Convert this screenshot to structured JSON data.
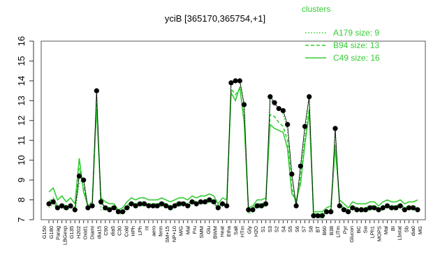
{
  "chart_data": {
    "type": "line",
    "title": "yciB [365170,365754,+1]",
    "xlabel": "",
    "ylabel": "",
    "ylim": [
      7,
      16
    ],
    "yticks": [
      7,
      8,
      9,
      10,
      11,
      12,
      13,
      14,
      15,
      16
    ],
    "grid": false,
    "legend": {
      "title": "clusters",
      "placement": "top-right",
      "entries": [
        {
          "label": "A179 size: 9",
          "style": "dotted"
        },
        {
          "label": "B94 size: 13",
          "style": "dashed"
        },
        {
          "label": "C49 size: 16",
          "style": "solid"
        }
      ]
    },
    "colors": {
      "clusters": "#33cc33",
      "mean": "#000000"
    },
    "categories": [
      "G150",
      "G135",
      "G180",
      "Parag",
      "H202",
      "LBGexp",
      "Oxid1",
      "dia15",
      "Diami",
      "C90",
      "dia5",
      "C30",
      "Cold",
      "LPh",
      "HPh",
      "aero",
      "nt",
      "ferm",
      "SM+15",
      "NP+10",
      "C20",
      "MG+15",
      "MG+30",
      "MG+45",
      "MG+60",
      "MG+90",
      "MG+120",
      "MG+150",
      "MG+180",
      "NO+10",
      "NO+15",
      "NO+30",
      "NO+45",
      "NO+60",
      "NO+90",
      "NO+120",
      "M/G",
      "MG+t",
      "MG+t5",
      "Mal",
      "Glu",
      "Fru",
      "SMM",
      "BWM",
      "Heat",
      "Etha",
      "Salt",
      "HTm",
      "Gly",
      "H2O",
      "S1",
      "S2",
      "S3",
      "S4",
      "S5",
      "S6",
      "S7",
      "S8",
      "BT",
      "B60",
      "B38",
      "LiTm",
      "Pyr",
      "Glucon",
      "Ace",
      "SMMP",
      "Mal+",
      "Lac",
      "LBGstat",
      "M63",
      "MOPS",
      "LB1",
      "LB2",
      "LPh2",
      "BC",
      "Sw",
      "BI",
      "M40st",
      "M40",
      "MOPS2",
      "Lbstat",
      "Sh",
      "Sb",
      "dia0",
      "Mg",
      "MOF"
    ],
    "tick_labels": [
      "G150",
      "G180",
      "Parag",
      "LBGexp",
      "G135",
      "H202",
      "Oxid1",
      "Diami",
      "dia15",
      "C90",
      "dia5",
      "C30",
      "Cold",
      "HPh",
      "LPh",
      "nt",
      "aero",
      "ferm",
      "SM+15",
      "NP+10",
      "M/G",
      "Mal",
      "Fru",
      "SMM",
      "Glu",
      "BWM",
      "Heat",
      "Etha",
      "Salt",
      "HTm",
      "Gly",
      "H2O",
      "S1",
      "S3",
      "S2",
      "S4",
      "S5",
      "S6",
      "S7",
      "S8",
      "BT",
      "B60",
      "B38",
      "LiTm",
      "Pyr",
      "Glucon",
      "BC",
      "Sw",
      "LPh1",
      "MOPS",
      "Mal",
      "BI",
      "Lbstat",
      "Sb",
      "dia0",
      "MG"
    ],
    "series": [
      {
        "values": [
          7.6,
          7.8,
          7.5,
          7.6,
          7.5,
          7.6,
          7.4,
          8.8,
          9.1,
          7.6,
          7.6,
          13.4,
          7.5,
          7.5,
          7.4,
          7.6,
          7.3,
          7.3,
          7.5,
          7.7,
          7.6,
          7.7,
          7.7,
          7.7,
          7.6,
          7.6,
          7.7,
          7.7,
          7.5,
          7.6,
          7.7,
          7.7,
          7.6,
          7.8,
          7.7,
          7.8,
          7.8,
          7.9,
          7.8,
          7.5,
          7.7,
          7.6,
          14.0,
          13.9,
          14.0,
          12.9,
          7.3,
          7.4,
          7.6,
          7.6,
          7.7,
          13.1,
          12.8,
          12.6,
          12.3,
          11.6,
          9.2,
          7.6,
          9.6,
          11.5,
          13.2,
          7.1,
          7.1,
          7.1,
          7.3,
          7.3,
          11.5,
          7.6,
          7.4,
          7.3,
          7.5,
          7.4,
          7.4,
          7.4,
          7.5,
          7.5,
          7.4,
          7.5,
          7.6,
          7.5,
          7.5,
          7.6,
          7.4,
          7.5,
          7.5,
          7.4
        ]
      },
      {
        "values": [
          7.9,
          8.1,
          7.7,
          7.8,
          7.7,
          7.8,
          7.6,
          9.6,
          8.6,
          7.6,
          7.8,
          12.9,
          7.8,
          7.7,
          7.6,
          7.7,
          7.4,
          7.5,
          7.7,
          7.9,
          7.8,
          7.9,
          7.9,
          7.8,
          7.8,
          7.8,
          7.9,
          7.8,
          7.7,
          7.8,
          7.9,
          7.9,
          7.8,
          8.0,
          7.9,
          8.0,
          8.0,
          8.1,
          8.0,
          7.7,
          7.9,
          7.8,
          13.6,
          13.3,
          13.6,
          12.2,
          7.5,
          7.6,
          7.8,
          7.8,
          7.9,
          12.3,
          12.2,
          11.9,
          11.7,
          11.0,
          8.6,
          7.8,
          9.1,
          11.0,
          12.6,
          7.3,
          7.3,
          7.3,
          7.5,
          7.5,
          10.8,
          7.8,
          7.6,
          7.5,
          7.7,
          7.6,
          7.6,
          7.6,
          7.7,
          7.7,
          7.6,
          7.7,
          7.8,
          7.7,
          7.7,
          7.8,
          7.6,
          7.7,
          7.7,
          7.6
        ]
      },
      {
        "values": [
          8.4,
          8.6,
          8.0,
          8.2,
          7.9,
          8.1,
          7.8,
          10.1,
          8.4,
          7.7,
          7.9,
          12.6,
          8.1,
          7.9,
          7.8,
          7.8,
          7.5,
          7.6,
          7.9,
          8.1,
          8.0,
          8.1,
          8.1,
          8.0,
          8.0,
          8.0,
          8.1,
          8.0,
          7.9,
          8.0,
          8.1,
          8.1,
          8.0,
          8.2,
          8.1,
          8.2,
          8.2,
          8.3,
          8.2,
          7.8,
          8.1,
          8.0,
          13.4,
          13.0,
          13.7,
          11.9,
          7.6,
          7.7,
          8.0,
          8.0,
          8.1,
          11.8,
          11.6,
          11.5,
          11.4,
          10.6,
          8.3,
          8.0,
          8.8,
          10.8,
          12.4,
          7.4,
          7.4,
          7.4,
          7.6,
          7.7,
          10.6,
          8.0,
          7.8,
          7.6,
          7.9,
          7.8,
          7.8,
          7.8,
          7.9,
          7.9,
          7.7,
          7.9,
          8.0,
          7.9,
          7.9,
          8.0,
          7.8,
          7.9,
          7.9,
          8.0
        ]
      }
    ],
    "mean_points": [
      7.8,
      7.9,
      7.6,
      7.7,
      7.6,
      7.7,
      7.5,
      9.2,
      9.0,
      7.6,
      7.7,
      13.5,
      7.9,
      7.6,
      7.5,
      7.6,
      7.4,
      7.4,
      7.6,
      7.8,
      7.7,
      7.8,
      7.8,
      7.7,
      7.7,
      7.7,
      7.8,
      7.7,
      7.6,
      7.7,
      7.8,
      7.8,
      7.7,
      7.9,
      7.8,
      7.9,
      7.9,
      8.0,
      7.9,
      7.6,
      7.8,
      7.7,
      13.9,
      14.0,
      14.0,
      12.8,
      7.5,
      7.5,
      7.7,
      7.7,
      7.8,
      13.2,
      12.9,
      12.6,
      12.5,
      11.8,
      9.3,
      7.7,
      9.7,
      11.7,
      13.2,
      7.2,
      7.2,
      7.2,
      7.4,
      7.4,
      11.6,
      7.7,
      7.5,
      7.4,
      7.6,
      7.5,
      7.5,
      7.5,
      7.6,
      7.6,
      7.5,
      7.6,
      7.7,
      7.6,
      7.6,
      7.7,
      7.5,
      7.6,
      7.6,
      7.5
    ]
  }
}
